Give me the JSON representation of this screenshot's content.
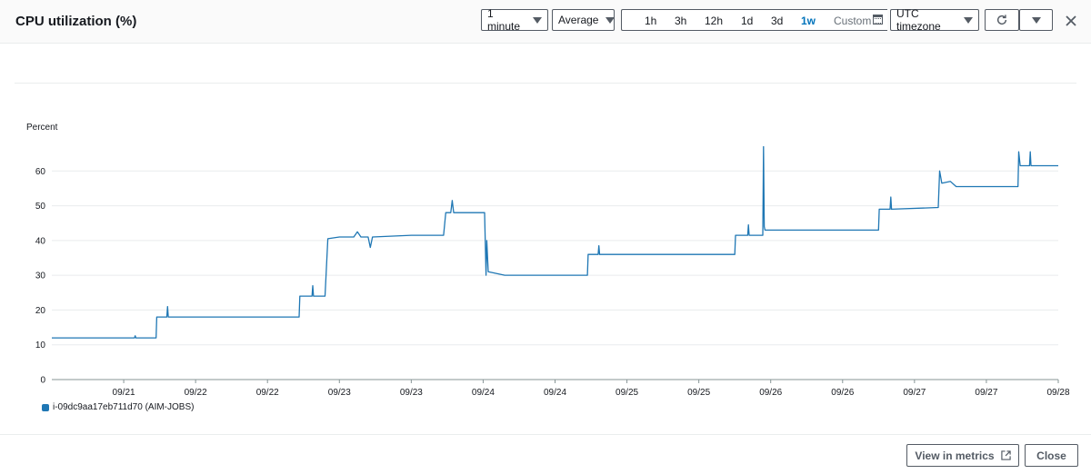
{
  "header": {
    "title": "CPU utilization (%)",
    "period_select": "1 minute",
    "stat_select": "Average",
    "ranges": [
      "1h",
      "3h",
      "12h",
      "1d",
      "3d",
      "1w"
    ],
    "active_range": "1w",
    "custom_label": "Custom",
    "timezone_select": "UTC timezone",
    "icons": {
      "refresh": "refresh-icon",
      "dropdown": "caret-down-icon",
      "close": "close-icon",
      "calendar": "calendar-icon"
    }
  },
  "footer": {
    "view_metrics_label": "View in metrics",
    "close_label": "Close",
    "external_icon": "external-link-icon"
  },
  "colors": {
    "series": "#1f77b4",
    "active_range": "#0073bb",
    "grid": "#e9ebed"
  },
  "chart_data": {
    "type": "line",
    "title": "",
    "ylabel": "Percent",
    "xlabel": "",
    "ylim": [
      0,
      70
    ],
    "yticks": [
      0,
      10,
      20,
      30,
      40,
      50,
      60
    ],
    "xlim": [
      0,
      14
    ],
    "xtick_labels": [
      "09/21",
      "09/22",
      "09/22",
      "09/23",
      "09/23",
      "09/24",
      "09/24",
      "09/25",
      "09/25",
      "09/26",
      "09/26",
      "09/27",
      "09/27",
      "09/28"
    ],
    "xtick_positions": [
      1,
      2,
      3,
      4,
      5,
      6,
      7,
      8,
      9,
      10,
      11,
      12,
      13,
      14
    ],
    "grid": true,
    "legend": "bottom-left",
    "series": [
      {
        "name": "i-09dc9aa17eb711d70 (AIM-JOBS)",
        "points": [
          [
            0.0,
            12.0
          ],
          [
            1.15,
            12.0
          ],
          [
            1.16,
            12.6
          ],
          [
            1.17,
            12.0
          ],
          [
            1.45,
            12.0
          ],
          [
            1.46,
            18.0
          ],
          [
            1.6,
            18.0
          ],
          [
            1.61,
            21.0
          ],
          [
            1.62,
            18.0
          ],
          [
            3.44,
            18.0
          ],
          [
            3.45,
            24.0
          ],
          [
            3.62,
            24.0
          ],
          [
            3.63,
            27.0
          ],
          [
            3.64,
            24.0
          ],
          [
            3.8,
            24.0
          ],
          [
            3.84,
            40.5
          ],
          [
            4.0,
            41.0
          ],
          [
            4.2,
            41.0
          ],
          [
            4.25,
            42.5
          ],
          [
            4.3,
            41.0
          ],
          [
            4.4,
            41.0
          ],
          [
            4.43,
            38.0
          ],
          [
            4.46,
            41.0
          ],
          [
            5.0,
            41.5
          ],
          [
            5.45,
            41.5
          ],
          [
            5.48,
            48.0
          ],
          [
            5.55,
            48.0
          ],
          [
            5.57,
            51.5
          ],
          [
            5.59,
            48.0
          ],
          [
            6.02,
            48.0
          ],
          [
            6.04,
            30.0
          ],
          [
            6.05,
            40.0
          ],
          [
            6.07,
            31.0
          ],
          [
            6.3,
            30.0
          ],
          [
            7.45,
            30.0
          ],
          [
            7.46,
            36.0
          ],
          [
            7.6,
            36.0
          ],
          [
            7.61,
            38.5
          ],
          [
            7.62,
            36.0
          ],
          [
            9.5,
            36.0
          ],
          [
            9.51,
            41.5
          ],
          [
            9.68,
            41.5
          ],
          [
            9.69,
            44.5
          ],
          [
            9.7,
            41.5
          ],
          [
            9.89,
            41.5
          ],
          [
            9.9,
            67.0
          ],
          [
            9.91,
            44.0
          ],
          [
            9.92,
            43.0
          ],
          [
            11.5,
            43.0
          ],
          [
            11.51,
            49.0
          ],
          [
            11.66,
            49.0
          ],
          [
            11.67,
            52.5
          ],
          [
            11.68,
            49.0
          ],
          [
            12.33,
            49.5
          ],
          [
            12.35,
            60.0
          ],
          [
            12.38,
            56.5
          ],
          [
            12.5,
            57.0
          ],
          [
            12.58,
            55.5
          ],
          [
            13.44,
            55.5
          ],
          [
            13.45,
            65.5
          ],
          [
            13.47,
            61.5
          ],
          [
            13.6,
            61.5
          ],
          [
            13.61,
            65.5
          ],
          [
            13.62,
            61.5
          ],
          [
            14.0,
            61.5
          ]
        ]
      }
    ]
  }
}
